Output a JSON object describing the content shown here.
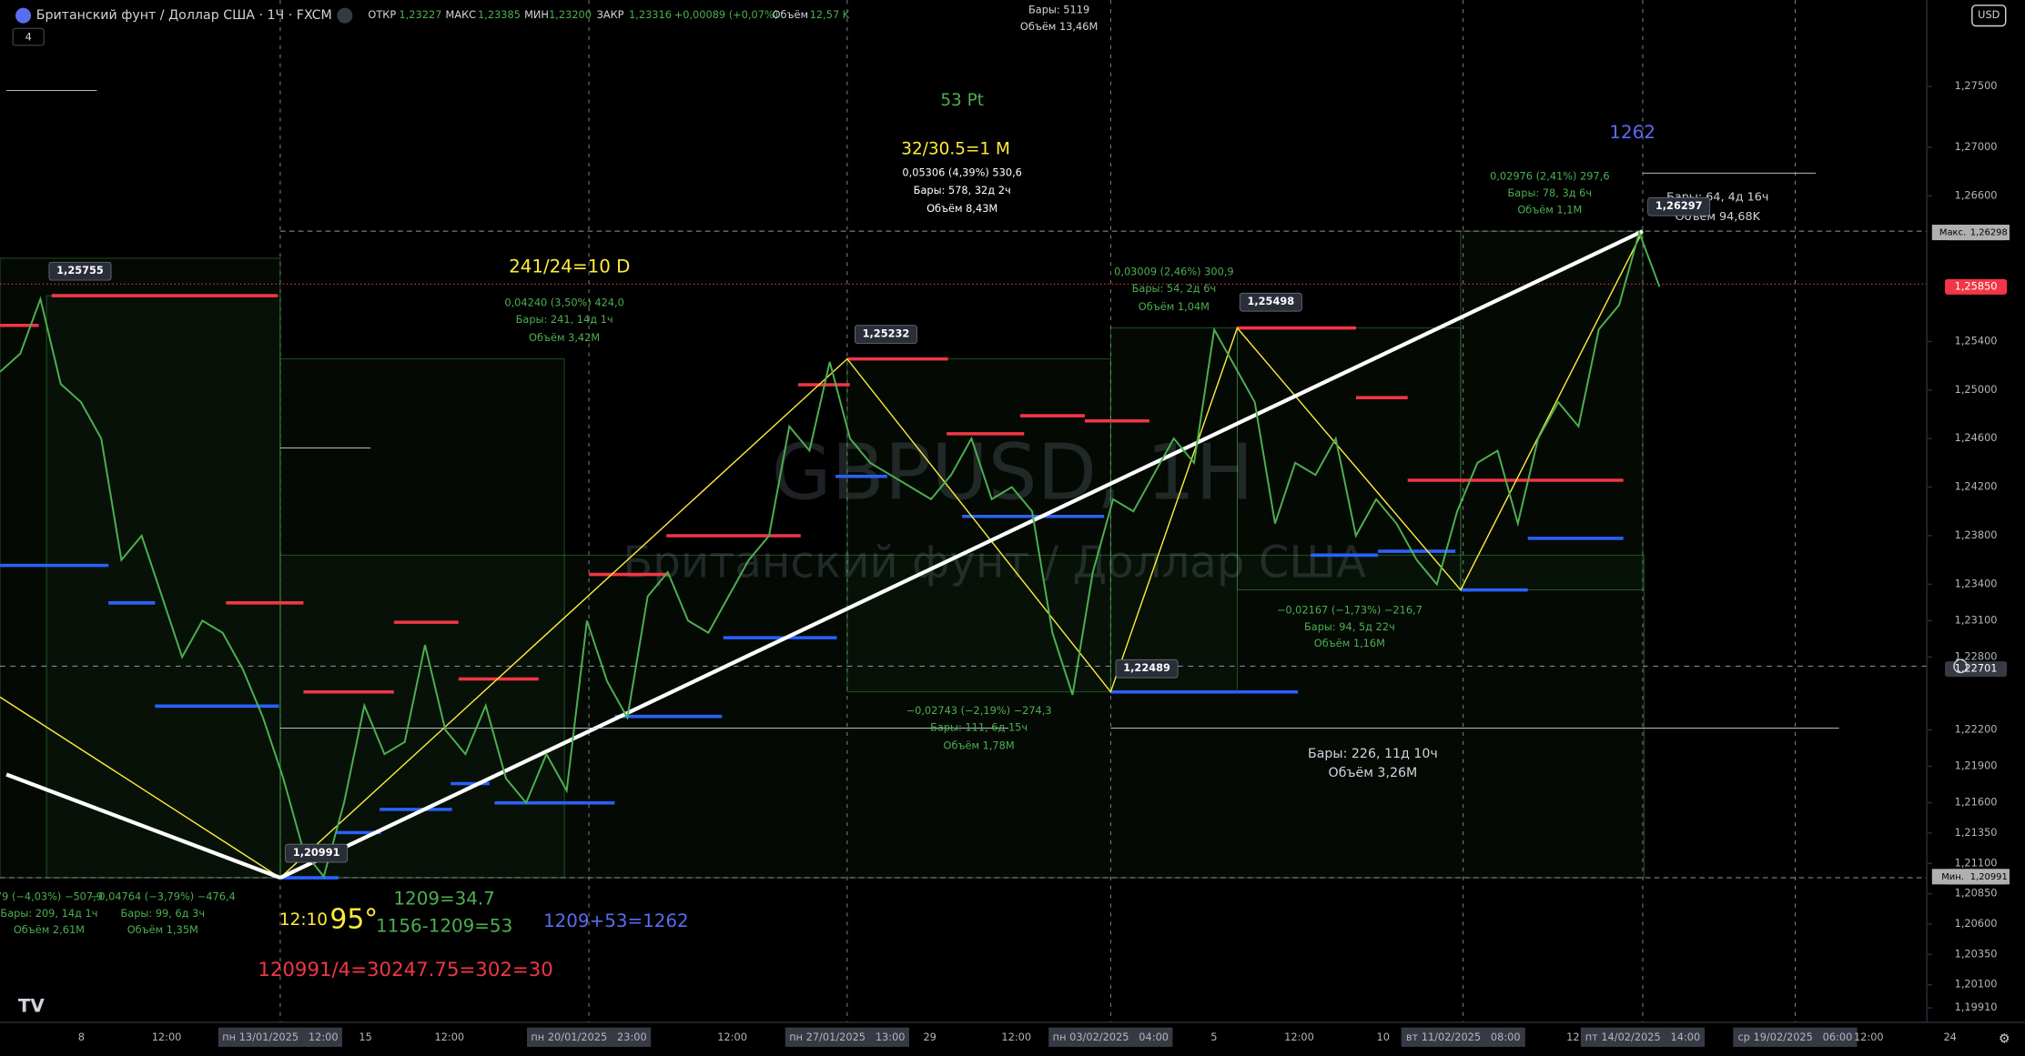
{
  "header": {
    "symbol": "Британский фунт / Доллар США · 1Ч · FXCM",
    "interval_count": "4",
    "open_label": "ОТКР",
    "open": "1,23227",
    "high_label": "МАКС",
    "high": "1,23385",
    "low_label": "МИН",
    "low": "1,23200",
    "close_label": "ЗАКР",
    "close": "1,23316",
    "change": "+0,00089 (+0,07%)",
    "volume_label": "Объём",
    "volume": "12,57 K",
    "currency": "USD",
    "bars_total": "Бары: 5119",
    "volume_total": "Объём 13,46M"
  },
  "watermark": {
    "ticker": "GBPUSD, 1H",
    "name": "Британский фунт / Доллар США"
  },
  "chart_data": {
    "type": "line",
    "color": "#4caf50",
    "values": [
      1.2515,
      1.253,
      1.2575,
      1.2505,
      1.249,
      1.246,
      1.236,
      1.238,
      1.233,
      1.228,
      1.231,
      1.23,
      1.227,
      1.223,
      1.218,
      1.212,
      1.20991,
      1.216,
      1.224,
      1.22,
      1.221,
      1.229,
      1.222,
      1.22,
      1.224,
      1.218,
      1.216,
      1.22,
      1.217,
      1.231,
      1.226,
      1.223,
      1.233,
      1.235,
      1.231,
      1.23,
      1.233,
      1.236,
      1.238,
      1.247,
      1.245,
      1.25232,
      1.246,
      1.244,
      1.243,
      1.242,
      1.241,
      1.243,
      1.246,
      1.241,
      1.242,
      1.24,
      1.23,
      1.22489,
      1.235,
      1.241,
      1.24,
      1.243,
      1.246,
      1.244,
      1.25498,
      1.252,
      1.249,
      1.239,
      1.244,
      1.243,
      1.246,
      1.238,
      1.241,
      1.239,
      1.236,
      1.234,
      1.24,
      1.244,
      1.245,
      1.239,
      1.246,
      1.249,
      1.247,
      1.255,
      1.257,
      1.26297,
      1.2585
    ],
    "ylim": [
      1.19791,
      1.28212
    ],
    "yticks": [
      {
        "value": 1.275,
        "label": "1,27500"
      },
      {
        "value": 1.27,
        "label": "1,27000"
      },
      {
        "value": 1.266,
        "label": "1,26600"
      },
      {
        "value": 1.254,
        "label": "1,25400"
      },
      {
        "value": 1.25,
        "label": "1,25000"
      },
      {
        "value": 1.246,
        "label": "1,24600"
      },
      {
        "value": 1.242,
        "label": "1,24200"
      },
      {
        "value": 1.238,
        "label": "1,23800"
      },
      {
        "value": 1.234,
        "label": "1,23400"
      },
      {
        "value": 1.231,
        "label": "1,23100"
      },
      {
        "value": 1.228,
        "label": "1,22800"
      },
      {
        "value": 1.222,
        "label": "1,22200"
      },
      {
        "value": 1.219,
        "label": "1,21900"
      },
      {
        "value": 1.216,
        "label": "1,21600"
      },
      {
        "value": 1.2135,
        "label": "1,21350"
      },
      {
        "value": 1.211,
        "label": "1,21100"
      },
      {
        "value": 1.2085,
        "label": "1,20850"
      },
      {
        "value": 1.206,
        "label": "1,20600"
      },
      {
        "value": 1.2035,
        "label": "1,20350"
      },
      {
        "value": 1.201,
        "label": "1,20100"
      },
      {
        "value": 1.1991,
        "label": "1,19910"
      }
    ],
    "price_labels": [
      {
        "tag": "Макс.",
        "value": 1.26298,
        "label": "1,26298",
        "color": "#b0b0b0"
      },
      {
        "value": 1.2585,
        "label": "1,25850",
        "color": "#f23645"
      },
      {
        "value": 1.22701,
        "label": "1,22701",
        "color": "#363a45"
      },
      {
        "tag": "Мин.",
        "value": 1.20991,
        "label": "1,20991",
        "color": "#b0b0b0"
      }
    ]
  },
  "time_axis": [
    "8",
    "12:00",
    "пн 13/01/2025   12:00",
    "15",
    "12:00",
    "пн 20/01/2025   23:00",
    "12:00",
    "пн 27/01/2025   13:00",
    "29",
    "12:00",
    "пн 03/02/2025   04:00",
    "5",
    "12:00",
    "10",
    "вт 11/02/2025   08:00",
    "12",
    "пт 14/02/2025   14:00",
    "ср 19/02/2025   06:00",
    "12:00",
    "24"
  ],
  "annotations": [
    {
      "text": "53 Pt",
      "color": "#4caf50"
    },
    {
      "text": "32/30.5=1 M",
      "color": "#ffeb3b"
    },
    {
      "text": "0,05306 (4,39%) 530,6",
      "color": "#ffffff"
    },
    {
      "text": "Бары: 578, 32д 2ч",
      "color": "#ffffff"
    },
    {
      "text": "Объём 8,43M",
      "color": "#ffffff"
    },
    {
      "text": "1262",
      "color": "#5b6cf0"
    },
    {
      "text": "0,02976 (2,41%) 297,6",
      "color": "#4caf50"
    },
    {
      "text": "Бары: 78, 3д 6ч",
      "color": "#4caf50"
    },
    {
      "text": "Объём 1,1M",
      "color": "#4caf50"
    },
    {
      "text": "Бары: 64, 4д 16ч",
      "color": "#d1d4dc"
    },
    {
      "text": "Объём 94,68K",
      "color": "#d1d4dc"
    },
    {
      "text": "241/24=10 D",
      "color": "#ffeb3b"
    },
    {
      "text": "0,04240 (3,50%) 424,0",
      "color": "#4caf50"
    },
    {
      "text": "Бары: 241, 14д 1ч",
      "color": "#4caf50"
    },
    {
      "text": "Объём 3,42M",
      "color": "#4caf50"
    },
    {
      "text": "0,03009 (2,46%) 300,9",
      "color": "#4caf50"
    },
    {
      "text": "Бары: 54, 2д 6ч",
      "color": "#4caf50"
    },
    {
      "text": "Объём 1,04M",
      "color": "#4caf50"
    },
    {
      "text": "1,25755",
      "color": "#ffffff"
    },
    {
      "text": "1,25232",
      "color": "#ffffff"
    },
    {
      "text": "1,25498",
      "color": "#ffffff"
    },
    {
      "text": "1,26297",
      "color": "#ffffff"
    },
    {
      "text": "1,22489",
      "color": "#ffffff"
    },
    {
      "text": "1,20991",
      "color": "#ffffff"
    },
    {
      "text": "−0,02743 (−2,19%) −274,3",
      "color": "#4caf50"
    },
    {
      "text": "Бары: 111, 6д 15ч",
      "color": "#4caf50"
    },
    {
      "text": "Объём 1,78M",
      "color": "#4caf50"
    },
    {
      "text": "−0,02167 (−1,73%) −216,7",
      "color": "#4caf50"
    },
    {
      "text": "Бары: 94, 5д 22ч",
      "color": "#4caf50"
    },
    {
      "text": "Объём 1,16M",
      "color": "#4caf50"
    },
    {
      "text": "Бары: 226, 11д 10ч",
      "color": "#d1d4dc"
    },
    {
      "text": "Объём 3,26M",
      "color": "#d1d4dc"
    },
    {
      "text": "79 (−4,03%) −507,9",
      "color": "#4caf50"
    },
    {
      "text": "Бары: 209, 14д 1ч",
      "color": "#4caf50"
    },
    {
      "text": "Объём 2,61M",
      "color": "#4caf50"
    },
    {
      "text": "−0,04764 (−3,79%) −476,4",
      "color": "#4caf50"
    },
    {
      "text": "Бары: 99, 6д 3ч",
      "color": "#4caf50"
    },
    {
      "text": "Объём 1,35M",
      "color": "#4caf50"
    },
    {
      "text": "1209=34.7",
      "color": "#4caf50"
    },
    {
      "text": "12:10",
      "color": "#ffeb3b"
    },
    {
      "text": "95°",
      "color": "#ffeb3b"
    },
    {
      "text": "1156-1209=53",
      "color": "#4caf50"
    },
    {
      "text": "1209+53=1262",
      "color": "#5b6cf0"
    },
    {
      "text": "120991/4=30247.75=302=30",
      "color": "#f23645"
    }
  ]
}
